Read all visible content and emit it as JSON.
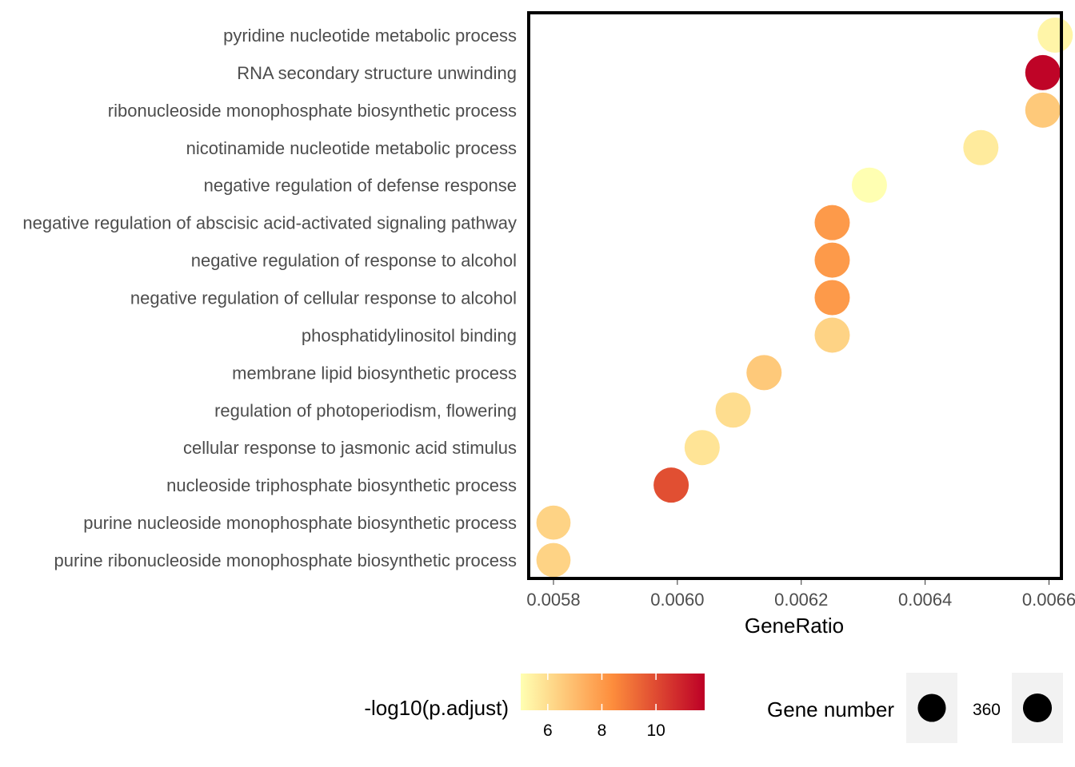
{
  "chart_data": {
    "type": "scatter",
    "xlabel": "GeneRatio",
    "ylabel": "",
    "xlim": [
      0.00576,
      0.00662
    ],
    "x_ticks": [
      "0.0058",
      "0.0060",
      "0.0062",
      "0.0064",
      "0.0066"
    ],
    "x_tick_values": [
      0.0058,
      0.006,
      0.0062,
      0.0064,
      0.0066
    ],
    "grid": false,
    "colors": {
      "low": "#FFFFB2",
      "mid": "#FD8D3C",
      "high": "#BD0026",
      "frame": "#000000"
    },
    "points": [
      {
        "category": "pyridine nucleotide metabolic process",
        "x": 0.00661,
        "color_value": 5.3,
        "size": 360
      },
      {
        "category": "RNA secondary structure unwinding",
        "x": 0.00659,
        "color_value": 11.7,
        "size": 360
      },
      {
        "category": "ribonucleoside monophosphate biosynthetic process",
        "x": 0.00659,
        "color_value": 6.6,
        "size": 360
      },
      {
        "category": "nicotinamide nucleotide metabolic process",
        "x": 0.00649,
        "color_value": 5.6,
        "size": 360
      },
      {
        "category": "negative regulation of defense response",
        "x": 0.00631,
        "color_value": 5.0,
        "size": 360
      },
      {
        "category": "negative regulation of abscisic acid-activated signaling pathway",
        "x": 0.00625,
        "color_value": 8.0,
        "size": 360
      },
      {
        "category": "negative regulation of response to alcohol",
        "x": 0.00625,
        "color_value": 8.0,
        "size": 360
      },
      {
        "category": "negative regulation of cellular response to alcohol",
        "x": 0.00625,
        "color_value": 8.0,
        "size": 360
      },
      {
        "category": "phosphatidylinositol binding",
        "x": 0.00625,
        "color_value": 6.3,
        "size": 360
      },
      {
        "category": "membrane lipid biosynthetic process",
        "x": 0.00614,
        "color_value": 6.6,
        "size": 360
      },
      {
        "category": "regulation of photoperiodism, flowering",
        "x": 0.00609,
        "color_value": 6.0,
        "size": 360
      },
      {
        "category": "cellular response to jasmonic acid stimulus",
        "x": 0.00604,
        "color_value": 5.8,
        "size": 360
      },
      {
        "category": "nucleoside triphosphate biosynthetic process",
        "x": 0.00599,
        "color_value": 9.9,
        "size": 360
      },
      {
        "category": "purine nucleoside monophosphate biosynthetic process",
        "x": 0.0058,
        "color_value": 6.3,
        "size": 340
      },
      {
        "category": "purine ribonucleoside monophosphate biosynthetic process",
        "x": 0.0058,
        "color_value": 6.3,
        "size": 340
      }
    ],
    "color_legend": {
      "title": "-log10(p.adjust)",
      "range": [
        5.0,
        11.8
      ],
      "ticks": [
        "6",
        "8",
        "10"
      ],
      "tick_values": [
        6,
        8,
        10
      ]
    },
    "size_legend": {
      "title": "Gene number",
      "entries": [
        {
          "label": "",
          "size": 340
        },
        {
          "label": "360",
          "size": 360
        }
      ]
    }
  }
}
